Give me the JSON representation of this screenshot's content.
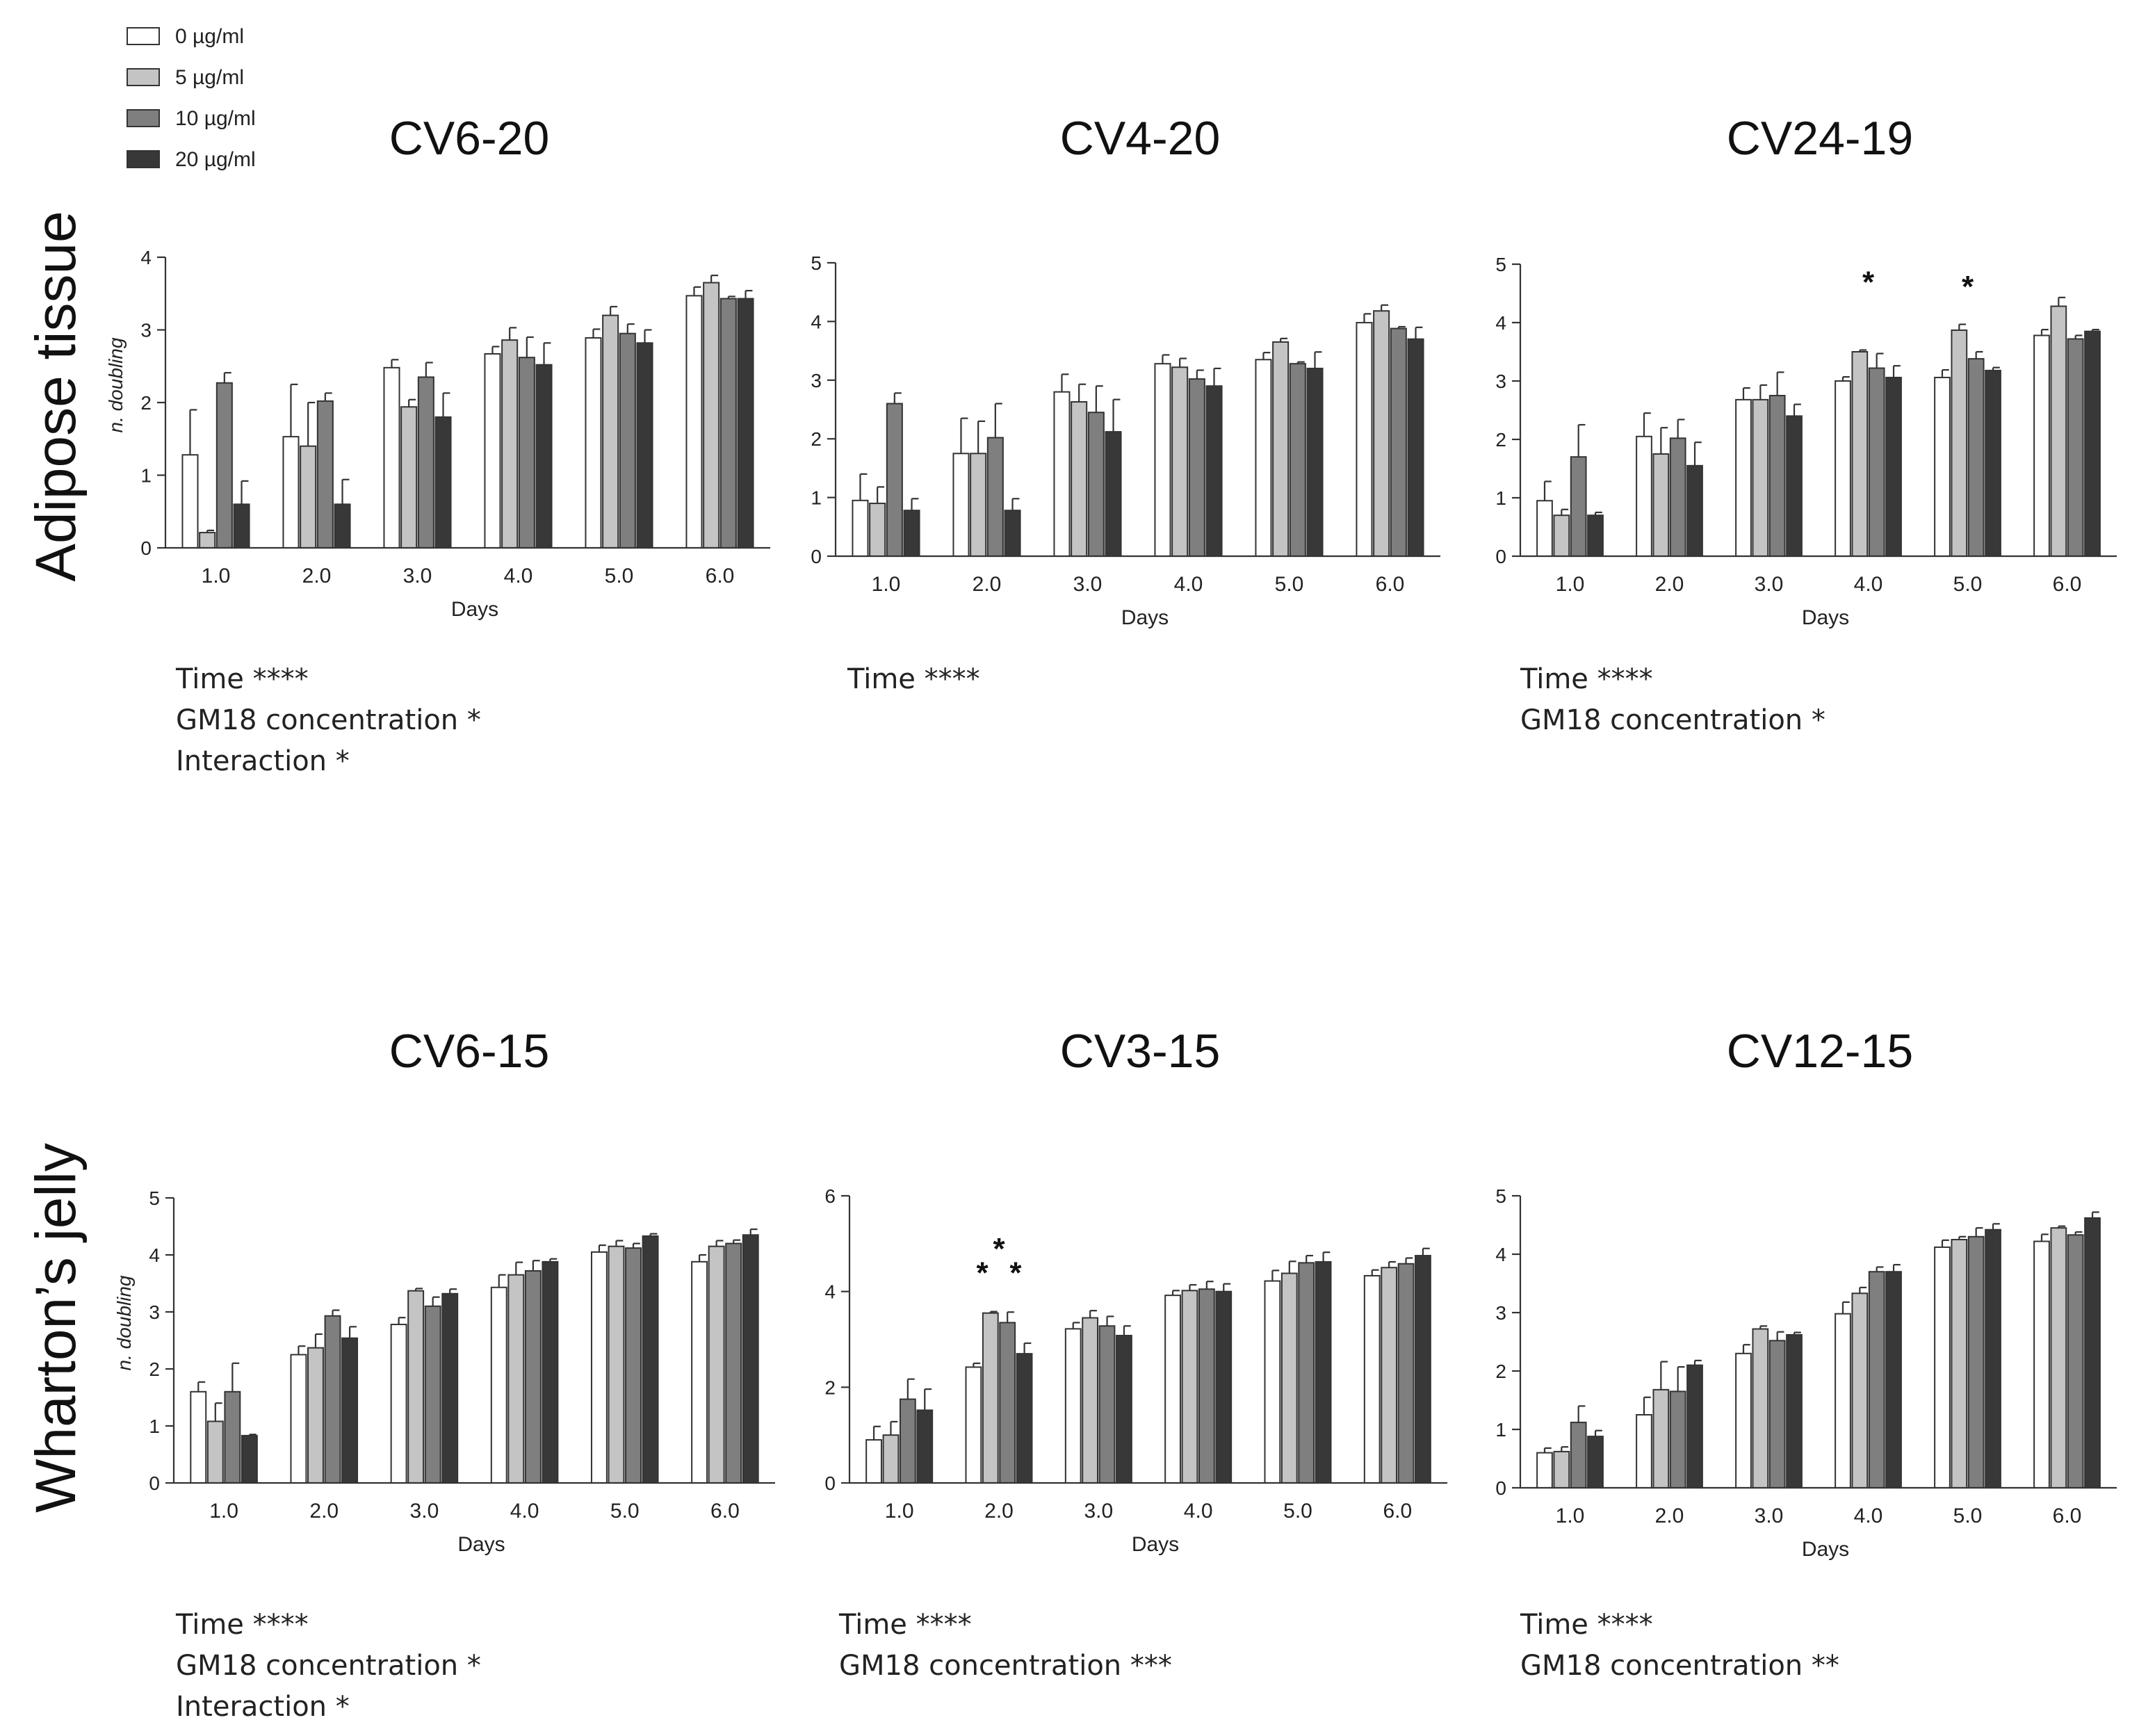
{
  "legend": {
    "items": [
      {
        "label": "0 µg/ml",
        "color": "#ffffff"
      },
      {
        "label": "5 µg/ml",
        "color": "#c4c4c4"
      },
      {
        "label": "10 µg/ml",
        "color": "#7f7f7f"
      },
      {
        "label": "20 µg/ml",
        "color": "#383838"
      }
    ]
  },
  "rows": [
    {
      "label": "Adipose tissue"
    },
    {
      "label": "Wharton’s jelly"
    }
  ],
  "chart_data": [
    {
      "type": "bar",
      "title": "CV6-20",
      "xlabel": "Days",
      "ylabel": "n. doubling",
      "ylim": [
        0,
        4
      ],
      "yticks": [
        "0",
        "1",
        "2",
        "3",
        "4"
      ],
      "categories": [
        "1.0",
        "2.0",
        "3.0",
        "4.0",
        "5.0",
        "6.0"
      ],
      "series": [
        {
          "name": "0 µg/ml",
          "values": [
            1.28,
            1.53,
            2.48,
            2.67,
            2.89,
            3.47
          ],
          "errors": [
            0.62,
            0.72,
            0.11,
            0.1,
            0.12,
            0.12
          ]
        },
        {
          "name": "5 µg/ml",
          "values": [
            0.21,
            1.4,
            1.94,
            2.86,
            3.2,
            3.65
          ],
          "errors": [
            0.03,
            0.6,
            0.1,
            0.17,
            0.12,
            0.1
          ]
        },
        {
          "name": "10 µg/ml",
          "values": [
            2.27,
            2.02,
            2.35,
            2.62,
            2.95,
            3.43
          ],
          "errors": [
            0.14,
            0.11,
            0.2,
            0.28,
            0.13,
            0.03
          ]
        },
        {
          "name": "20 µg/ml",
          "values": [
            0.6,
            0.6,
            1.8,
            2.52,
            2.82,
            3.43
          ],
          "errors": [
            0.32,
            0.34,
            0.33,
            0.3,
            0.18,
            0.11
          ]
        }
      ],
      "annotations": [],
      "stats": [
        "Time ****",
        "GM18 concentration *",
        "Interaction *"
      ]
    },
    {
      "type": "bar",
      "title": "CV4-20",
      "xlabel": "Days",
      "ylabel": "",
      "ylim": [
        0,
        5
      ],
      "yticks": [
        "0",
        "1",
        "2",
        "3",
        "4",
        "5"
      ],
      "categories": [
        "1.0",
        "2.0",
        "3.0",
        "4.0",
        "5.0",
        "6.0"
      ],
      "series": [
        {
          "name": "0 µg/ml",
          "values": [
            0.95,
            1.75,
            2.8,
            3.28,
            3.35,
            3.98
          ],
          "errors": [
            0.45,
            0.6,
            0.3,
            0.15,
            0.12,
            0.15
          ]
        },
        {
          "name": "5 µg/ml",
          "values": [
            0.9,
            1.75,
            2.63,
            3.22,
            3.65,
            4.18
          ],
          "errors": [
            0.28,
            0.55,
            0.3,
            0.15,
            0.06,
            0.1
          ]
        },
        {
          "name": "10 µg/ml",
          "values": [
            2.6,
            2.02,
            2.45,
            3.02,
            3.28,
            3.88
          ],
          "errors": [
            0.18,
            0.58,
            0.45,
            0.15,
            0.03,
            0.03
          ]
        },
        {
          "name": "20 µg/ml",
          "values": [
            0.78,
            0.78,
            2.12,
            2.9,
            3.2,
            3.7
          ],
          "errors": [
            0.2,
            0.2,
            0.55,
            0.3,
            0.28,
            0.2
          ]
        }
      ],
      "annotations": [],
      "stats": [
        "Time ****"
      ]
    },
    {
      "type": "bar",
      "title": "CV24-19",
      "xlabel": "Days",
      "ylabel": "",
      "ylim": [
        0,
        5
      ],
      "yticks": [
        "0",
        "1",
        "2",
        "3",
        "4",
        "5"
      ],
      "categories": [
        "1.0",
        "2.0",
        "3.0",
        "4.0",
        "5.0",
        "6.0"
      ],
      "series": [
        {
          "name": "0 µg/ml",
          "values": [
            0.95,
            2.05,
            2.68,
            3.0,
            3.06,
            3.78
          ],
          "errors": [
            0.33,
            0.4,
            0.2,
            0.07,
            0.13,
            0.1
          ]
        },
        {
          "name": "5 µg/ml",
          "values": [
            0.7,
            1.75,
            2.68,
            3.5,
            3.87,
            4.28
          ],
          "errors": [
            0.1,
            0.45,
            0.25,
            0.03,
            0.1,
            0.15
          ]
        },
        {
          "name": "10 µg/ml",
          "values": [
            1.7,
            2.02,
            2.75,
            3.22,
            3.38,
            3.72
          ],
          "errors": [
            0.55,
            0.32,
            0.4,
            0.25,
            0.12,
            0.06
          ]
        },
        {
          "name": "20 µg/ml",
          "values": [
            0.7,
            1.55,
            2.4,
            3.06,
            3.18,
            3.85
          ],
          "errors": [
            0.05,
            0.4,
            0.2,
            0.2,
            0.05,
            0.03
          ]
        }
      ],
      "annotations": [
        {
          "text": "*",
          "category": "4.0",
          "y": 4.78
        },
        {
          "text": "*",
          "category": "5.0",
          "y": 4.7
        }
      ],
      "stats": [
        "Time ****",
        "GM18 concentration *"
      ]
    },
    {
      "type": "bar",
      "title": "CV6-15",
      "xlabel": "Days",
      "ylabel": "n. doubling",
      "ylim": [
        0,
        5
      ],
      "yticks": [
        "0",
        "1",
        "2",
        "3",
        "4",
        "5"
      ],
      "categories": [
        "1.0",
        "2.0",
        "3.0",
        "4.0",
        "5.0",
        "6.0"
      ],
      "series": [
        {
          "name": "0 µg/ml",
          "values": [
            1.6,
            2.25,
            2.78,
            3.43,
            4.05,
            3.88
          ],
          "errors": [
            0.17,
            0.15,
            0.12,
            0.22,
            0.12,
            0.12
          ]
        },
        {
          "name": "5 µg/ml",
          "values": [
            1.08,
            2.37,
            3.37,
            3.65,
            4.15,
            4.15
          ],
          "errors": [
            0.32,
            0.24,
            0.04,
            0.22,
            0.1,
            0.1
          ]
        },
        {
          "name": "10 µg/ml",
          "values": [
            1.6,
            2.93,
            3.1,
            3.72,
            4.12,
            4.2
          ],
          "errors": [
            0.5,
            0.1,
            0.16,
            0.18,
            0.08,
            0.06
          ]
        },
        {
          "name": "20 µg/ml",
          "values": [
            0.83,
            2.54,
            3.32,
            3.88,
            4.33,
            4.35
          ],
          "errors": [
            0.02,
            0.2,
            0.08,
            0.05,
            0.04,
            0.1
          ]
        }
      ],
      "annotations": [],
      "stats": [
        "Time ****",
        "GM18 concentration *",
        "Interaction *"
      ]
    },
    {
      "type": "bar",
      "title": "CV3-15",
      "xlabel": "Days",
      "ylabel": "",
      "ylim": [
        0,
        6
      ],
      "yticks": [
        "0",
        "2",
        "4",
        "6"
      ],
      "categories": [
        "1.0",
        "2.0",
        "3.0",
        "4.0",
        "5.0",
        "6.0"
      ],
      "series": [
        {
          "name": "0 µg/ml",
          "values": [
            0.9,
            2.42,
            3.22,
            3.92,
            4.22,
            4.33
          ],
          "errors": [
            0.28,
            0.08,
            0.13,
            0.1,
            0.22,
            0.12
          ]
        },
        {
          "name": "5 µg/ml",
          "values": [
            1.0,
            3.55,
            3.45,
            4.02,
            4.38,
            4.5
          ],
          "errors": [
            0.28,
            0.03,
            0.15,
            0.12,
            0.25,
            0.12
          ]
        },
        {
          "name": "10 µg/ml",
          "values": [
            1.75,
            3.35,
            3.28,
            4.05,
            4.6,
            4.58
          ],
          "errors": [
            0.42,
            0.22,
            0.2,
            0.16,
            0.15,
            0.12
          ]
        },
        {
          "name": "20 µg/ml",
          "values": [
            1.52,
            2.7,
            3.08,
            4.0,
            4.62,
            4.75
          ],
          "errors": [
            0.44,
            0.22,
            0.2,
            0.16,
            0.2,
            0.15
          ]
        }
      ],
      "annotations": [
        {
          "text": "*",
          "category": "2.0",
          "y": 5.0
        },
        {
          "text": "*",
          "category": "2.0",
          "y": 4.5,
          "offset": -1
        },
        {
          "text": "*",
          "category": "2.0",
          "y": 4.5,
          "offset": 1
        }
      ],
      "stats": [
        "Time ****",
        "GM18 concentration ***"
      ]
    },
    {
      "type": "bar",
      "title": "CV12-15",
      "xlabel": "Days",
      "ylabel": "",
      "ylim": [
        0,
        5
      ],
      "yticks": [
        "0",
        "1",
        "2",
        "3",
        "4",
        "5"
      ],
      "categories": [
        "1.0",
        "2.0",
        "3.0",
        "4.0",
        "5.0",
        "6.0"
      ],
      "series": [
        {
          "name": "0 µg/ml",
          "values": [
            0.6,
            1.25,
            2.3,
            2.98,
            4.12,
            4.22
          ],
          "errors": [
            0.08,
            0.3,
            0.15,
            0.2,
            0.12,
            0.12
          ]
        },
        {
          "name": "5 µg/ml",
          "values": [
            0.62,
            1.68,
            2.72,
            3.33,
            4.25,
            4.45
          ],
          "errors": [
            0.08,
            0.48,
            0.05,
            0.1,
            0.05,
            0.03
          ]
        },
        {
          "name": "10 µg/ml",
          "values": [
            1.12,
            1.65,
            2.52,
            3.7,
            4.3,
            4.33
          ],
          "errors": [
            0.28,
            0.42,
            0.15,
            0.08,
            0.15,
            0.05
          ]
        },
        {
          "name": "20 µg/ml",
          "values": [
            0.88,
            2.1,
            2.62,
            3.7,
            4.42,
            4.62
          ],
          "errors": [
            0.1,
            0.08,
            0.04,
            0.12,
            0.1,
            0.1
          ]
        }
      ],
      "annotations": [],
      "stats": [
        "Time ****",
        "GM18 concentration **"
      ]
    }
  ]
}
